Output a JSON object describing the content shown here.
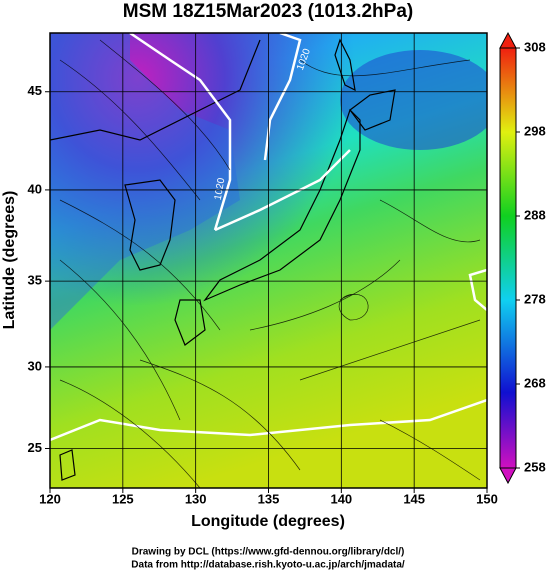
{
  "chart_data": {
    "type": "map",
    "title": "MSM 18Z15Mar2023 (1013.2hPa)",
    "x_label": "Longitude (degrees)",
    "y_label": "Latitude  (degrees)",
    "xlim": [
      120,
      150
    ],
    "xticks": [
      120,
      125,
      130,
      135,
      140,
      145,
      150
    ],
    "ylim": [
      22.5,
      47.8
    ],
    "yticks": [
      25,
      30,
      35,
      40,
      45
    ],
    "y_scale": "mercator",
    "colorbar_lim": [
      258,
      308
    ],
    "colorbar_ticks": [
      258,
      268,
      278,
      288,
      298,
      308
    ],
    "contour_labels": [
      "1020",
      "1020"
    ],
    "credits": [
      "Drawing by DCL (https://www.gfd-dennou.org/library/dcl/)",
      "Data from http://database.rish.kyoto-u.ac.jp/arch/jmadata/"
    ]
  }
}
